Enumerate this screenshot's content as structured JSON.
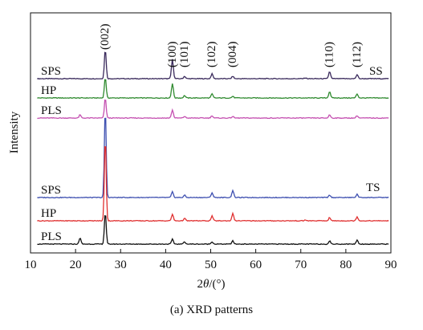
{
  "chart_data": {
    "type": "line",
    "xlabel_prefix": "2",
    "xlabel_symbol": "θ",
    "xlabel_suffix": "/(°)",
    "ylabel": "Intensity",
    "xlim": [
      10,
      90
    ],
    "xticks": [
      "10",
      "20",
      "30",
      "40",
      "50",
      "60",
      "70",
      "80",
      "90"
    ],
    "group_labels": [
      "SS",
      "TS"
    ],
    "peak_labels": [
      {
        "label": "(002)",
        "x": 26.6
      },
      {
        "label": "(100)",
        "x": 41.5
      },
      {
        "label": "(101)",
        "x": 44.2
      },
      {
        "label": "(102)",
        "x": 50.3
      },
      {
        "label": "(004)",
        "x": 54.9
      },
      {
        "label": "(110)",
        "x": 76.4
      },
      {
        "label": "(112)",
        "x": 82.5
      }
    ],
    "series": [
      {
        "name": "SPS",
        "group": "SS",
        "color": "#3a2a5c",
        "peaks": [
          [
            26.6,
            37
          ],
          [
            41.5,
            24
          ],
          [
            44.2,
            3
          ],
          [
            50.3,
            6
          ],
          [
            54.9,
            3
          ],
          [
            71.0,
            1
          ],
          [
            76.4,
            9
          ],
          [
            82.5,
            5
          ]
        ]
      },
      {
        "name": "HP",
        "group": "SS",
        "color": "#2f8a2f",
        "peaks": [
          [
            26.6,
            26
          ],
          [
            41.5,
            18
          ],
          [
            44.2,
            3
          ],
          [
            50.3,
            5
          ],
          [
            54.9,
            2
          ],
          [
            76.4,
            8
          ],
          [
            82.5,
            5
          ]
        ]
      },
      {
        "name": "PLS",
        "group": "SS",
        "color": "#c44fb0",
        "peaks": [
          [
            21.0,
            4
          ],
          [
            26.6,
            25
          ],
          [
            41.5,
            10
          ],
          [
            44.2,
            2
          ],
          [
            50.3,
            3
          ],
          [
            54.9,
            2
          ],
          [
            76.4,
            4
          ],
          [
            82.5,
            3
          ]
        ]
      },
      {
        "name": "SPS",
        "group": "TS",
        "color": "#3d4fb0",
        "peaks": [
          [
            26.6,
            112
          ],
          [
            41.5,
            7
          ],
          [
            44.2,
            3
          ],
          [
            50.3,
            6
          ],
          [
            54.9,
            9
          ],
          [
            76.4,
            3
          ],
          [
            82.5,
            4
          ]
        ]
      },
      {
        "name": "HP",
        "group": "TS",
        "color": "#e03030",
        "peaks": [
          [
            26.6,
            105
          ],
          [
            41.5,
            8
          ],
          [
            44.2,
            3
          ],
          [
            50.3,
            6
          ],
          [
            54.9,
            9
          ],
          [
            71.0,
            1
          ],
          [
            76.4,
            4
          ],
          [
            82.5,
            5
          ]
        ]
      },
      {
        "name": "PLS",
        "group": "TS",
        "color": "#111111",
        "peaks": [
          [
            21.0,
            8
          ],
          [
            26.6,
            40
          ],
          [
            41.5,
            6
          ],
          [
            44.2,
            3
          ],
          [
            50.3,
            3
          ],
          [
            54.9,
            4
          ],
          [
            76.4,
            4
          ],
          [
            82.5,
            5
          ]
        ]
      }
    ]
  },
  "caption": "(a) XRD patterns"
}
